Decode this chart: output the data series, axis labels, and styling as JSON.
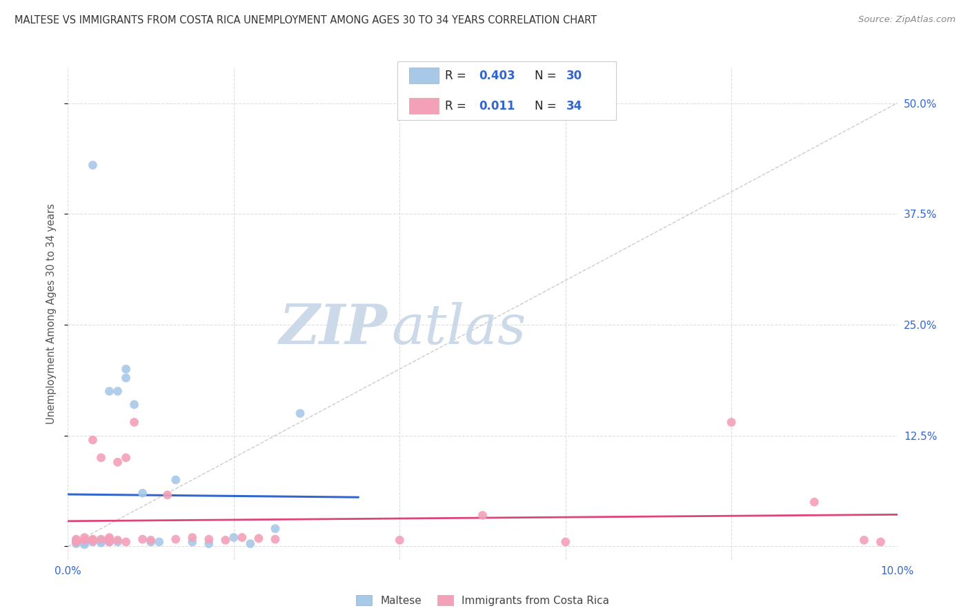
{
  "title": "MALTESE VS IMMIGRANTS FROM COSTA RICA UNEMPLOYMENT AMONG AGES 30 TO 34 YEARS CORRELATION CHART",
  "source_text": "Source: ZipAtlas.com",
  "ylabel": "Unemployment Among Ages 30 to 34 years",
  "xlim": [
    0.0,
    0.1
  ],
  "ylim": [
    -0.015,
    0.54
  ],
  "xticks": [
    0.0,
    0.02,
    0.04,
    0.06,
    0.08,
    0.1
  ],
  "xticklabels": [
    "0.0%",
    "",
    "",
    "",
    "",
    "10.0%"
  ],
  "yticks": [
    0.0,
    0.125,
    0.25,
    0.375,
    0.5
  ],
  "yticklabels": [
    "",
    "12.5%",
    "25.0%",
    "37.5%",
    "50.0%"
  ],
  "grid_color": "#dddddd",
  "background_color": "#ffffff",
  "watermark_text": "ZIPatlas",
  "watermark_color": "#ccd9e8",
  "legend_color_blue": "#a8c8e8",
  "legend_color_pink": "#f4a0b8",
  "series1_color": "#a8c8e8",
  "series2_color": "#f4a0b8",
  "trendline1_color": "#3366cc",
  "trendline2_color": "#dd4477",
  "diagonal_color": "#bbbbbb",
  "text_blue": "#3366cc",
  "text_black": "#444444",
  "legend_label1": "Maltese",
  "legend_label2": "Immigrants from Costa Rica",
  "maltese_x": [
    0.001,
    0.001,
    0.001,
    0.002,
    0.002,
    0.002,
    0.003,
    0.003,
    0.003,
    0.003,
    0.004,
    0.004,
    0.004,
    0.005,
    0.005,
    0.006,
    0.006,
    0.007,
    0.007,
    0.008,
    0.009,
    0.01,
    0.011,
    0.013,
    0.015,
    0.017,
    0.02,
    0.022,
    0.025,
    0.028
  ],
  "maltese_y": [
    0.003,
    0.005,
    0.007,
    0.004,
    0.006,
    0.002,
    0.005,
    0.006,
    0.007,
    0.43,
    0.004,
    0.005,
    0.007,
    0.005,
    0.175,
    0.005,
    0.175,
    0.19,
    0.2,
    0.16,
    0.06,
    0.005,
    0.005,
    0.075,
    0.005,
    0.003,
    0.01,
    0.003,
    0.02,
    0.15
  ],
  "costa_rica_x": [
    0.001,
    0.001,
    0.002,
    0.002,
    0.003,
    0.003,
    0.003,
    0.004,
    0.004,
    0.005,
    0.005,
    0.005,
    0.006,
    0.006,
    0.007,
    0.007,
    0.008,
    0.009,
    0.01,
    0.012,
    0.013,
    0.015,
    0.017,
    0.019,
    0.021,
    0.023,
    0.025,
    0.04,
    0.05,
    0.06,
    0.08,
    0.09,
    0.096,
    0.098
  ],
  "costa_rica_y": [
    0.005,
    0.008,
    0.007,
    0.01,
    0.006,
    0.008,
    0.12,
    0.008,
    0.1,
    0.005,
    0.008,
    0.01,
    0.095,
    0.007,
    0.005,
    0.1,
    0.14,
    0.008,
    0.007,
    0.058,
    0.008,
    0.01,
    0.008,
    0.007,
    0.01,
    0.009,
    0.008,
    0.007,
    0.035,
    0.005,
    0.14,
    0.05,
    0.007,
    0.005
  ]
}
